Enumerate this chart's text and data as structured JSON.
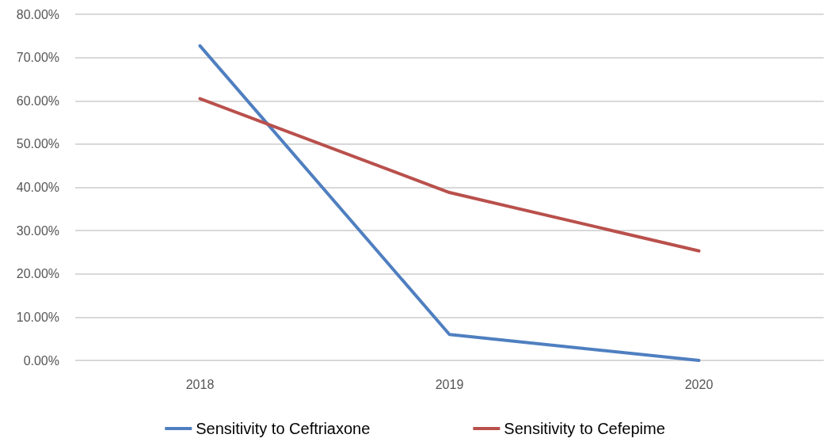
{
  "chart_data": {
    "type": "line",
    "categories": [
      "2018",
      "2019",
      "2020"
    ],
    "series": [
      {
        "name": "Sensitivity to Ceftriaxone",
        "color": "#4f7fc0",
        "values": [
          72.7,
          6.0,
          0
        ]
      },
      {
        "name": "Sensitivity to Cefepime",
        "color": "#b9504c",
        "values": [
          60.5,
          38.8,
          25.3
        ]
      }
    ],
    "ylim": [
      0,
      80
    ],
    "yticks": [
      {
        "value": 0,
        "label": "0.00%"
      },
      {
        "value": 10,
        "label": "10.00%"
      },
      {
        "value": 20,
        "label": "20.00%"
      },
      {
        "value": 30,
        "label": "30.00%"
      },
      {
        "value": 40,
        "label": "40.00%"
      },
      {
        "value": 50,
        "label": "50.00%"
      },
      {
        "value": 60,
        "label": "60.00%"
      },
      {
        "value": 70,
        "label": "70.00%"
      },
      {
        "value": 80,
        "label": "80.00%"
      }
    ],
    "grid": "y",
    "legend": "bottom",
    "marker": "none",
    "line_style": "solid"
  }
}
